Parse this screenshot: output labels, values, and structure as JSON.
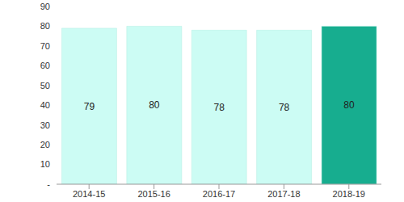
{
  "chart_data": {
    "type": "bar",
    "categories": [
      "2014-15",
      "2015-16",
      "2016-17",
      "2017-18",
      "2018-19"
    ],
    "values": [
      79,
      80,
      78,
      78,
      80
    ],
    "colors": [
      "#ccfcf4",
      "#ccfcf4",
      "#ccfcf4",
      "#ccfcf4",
      "#17ad8f"
    ],
    "ylim": [
      0,
      90
    ],
    "yticks": [
      {
        "value": 0,
        "label": "-"
      },
      10,
      20,
      30,
      40,
      50,
      60,
      70,
      80,
      90
    ],
    "grid": false,
    "data_labels": true
  }
}
